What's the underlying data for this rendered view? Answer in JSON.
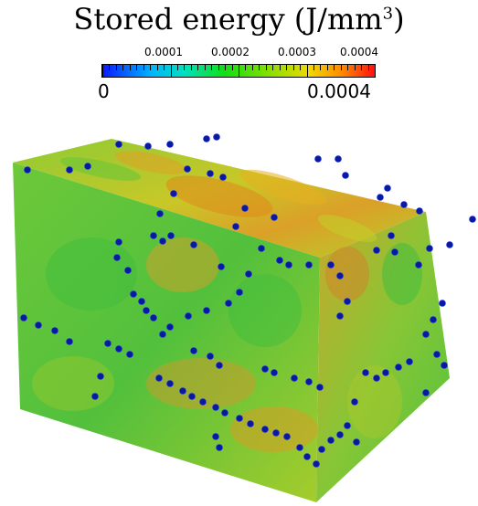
{
  "figure": {
    "title_text": "Stored energy (J/mm",
    "title_sup": "3",
    "title_close": ")"
  },
  "colorbar": {
    "tick_labels": [
      "0.0001",
      "0.0002",
      "0.0003",
      "0.0004"
    ],
    "min_label": "0",
    "max_label": "0.0004",
    "colors": [
      "#0a1aff",
      "#00b4ff",
      "#00e0c0",
      "#10e010",
      "#8ce000",
      "#f0d800",
      "#ff8a00",
      "#ff1010"
    ]
  },
  "scene": {
    "description_colors": {
      "grain_green": "#4cc63a",
      "grain_yellow": "#c8d21e",
      "hot_orange": "#e08a1a",
      "nucleus_blue": "#0a1a9c"
    }
  }
}
